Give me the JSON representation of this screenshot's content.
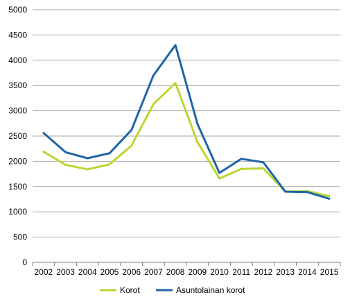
{
  "chart_data": {
    "type": "line",
    "title": "",
    "xlabel": "",
    "ylabel": "",
    "x": [
      "2002",
      "2003",
      "2004",
      "2005",
      "2006",
      "2007",
      "2008",
      "2009",
      "2010",
      "2011",
      "2012",
      "2013",
      "2014",
      "2015"
    ],
    "ylim": [
      0,
      5000
    ],
    "yticks": [
      0,
      500,
      1000,
      1500,
      2000,
      2500,
      3000,
      3500,
      4000,
      4500,
      5000
    ],
    "grid": true,
    "legend_position": "bottom",
    "series": [
      {
        "name": "Korot",
        "color": "#BDD531",
        "values": [
          2190,
          1930,
          1840,
          1940,
          2310,
          3130,
          3550,
          2380,
          1660,
          1850,
          1860,
          1400,
          1410,
          1310
        ]
      },
      {
        "name": "Asuntolainan korot",
        "color": "#1F64A8",
        "values": [
          2560,
          2180,
          2060,
          2160,
          2620,
          3700,
          4300,
          2740,
          1770,
          2050,
          1980,
          1400,
          1390,
          1260
        ]
      }
    ]
  }
}
